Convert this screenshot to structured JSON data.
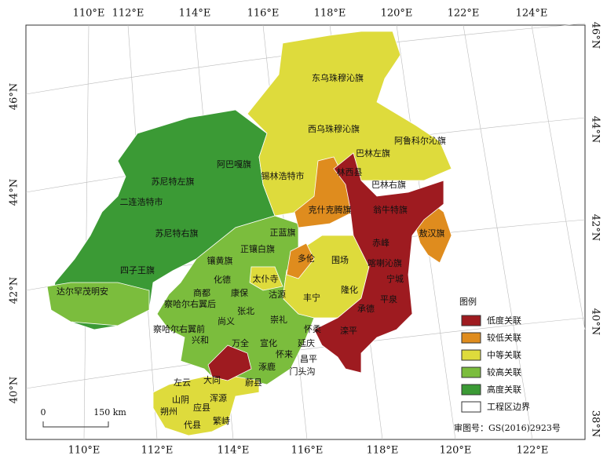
{
  "map": {
    "graticule": {
      "top": [
        "110°E",
        "112°E",
        "114°E",
        "116°E",
        "118°E",
        "120°E",
        "122°E",
        "124°E"
      ],
      "bottom": [
        "110°E",
        "112°E",
        "114°E",
        "116°E",
        "118°E",
        "120°E",
        "122°E"
      ],
      "left": [
        "46°N",
        "44°N",
        "42°N",
        "40°N"
      ],
      "right": [
        "46°N",
        "44°N",
        "42°N",
        "40°N",
        "38°N"
      ]
    },
    "regions": [
      "东乌珠穆沁旗",
      "西乌珠穆沁旗",
      "阿鲁科尔沁旗",
      "巴林左旗",
      "林西县",
      "巴林右旗",
      "锡林浩特市",
      "阿巴嘎旗",
      "苏尼特左旗",
      "二连浩特市",
      "克什克腾旗",
      "翁牛特旗",
      "敖汉旗",
      "苏尼特右旗",
      "正蓝旗",
      "正镶白旗",
      "多伦",
      "围场",
      "赤峰",
      "喀喇沁旗",
      "镶黄旗",
      "四子王旗",
      "太仆寺",
      "宁城",
      "化德",
      "商都",
      "康保",
      "沽源",
      "丰宁",
      "隆化",
      "达尔罕茂明安",
      "察哈尔右翼后",
      "平泉",
      "张北",
      "承德",
      "尚义",
      "崇礼",
      "滦平",
      "察哈尔右翼前",
      "怀柔",
      "兴和",
      "万全",
      "宣化",
      "延庆",
      "怀来",
      "涿鹿",
      "昌平",
      "门头沟",
      "大同",
      "左云",
      "蔚县",
      "山阴",
      "浑源",
      "朔州",
      "应县",
      "代县",
      "繁峙"
    ],
    "legend": {
      "title": "图例",
      "items": [
        {
          "name": "低度关联",
          "color": "#9e1b20"
        },
        {
          "name": "较低关联",
          "color": "#df8c1e"
        },
        {
          "name": "中等关联",
          "color": "#dedb3c"
        },
        {
          "name": "较高关联",
          "color": "#7bbd3d"
        },
        {
          "name": "高度关联",
          "color": "#3b9a35"
        }
      ],
      "boundary": "工程区边界"
    },
    "scale": {
      "start": "0",
      "end": "150 km"
    },
    "approval": "审图号：GS(2016)2923号"
  }
}
